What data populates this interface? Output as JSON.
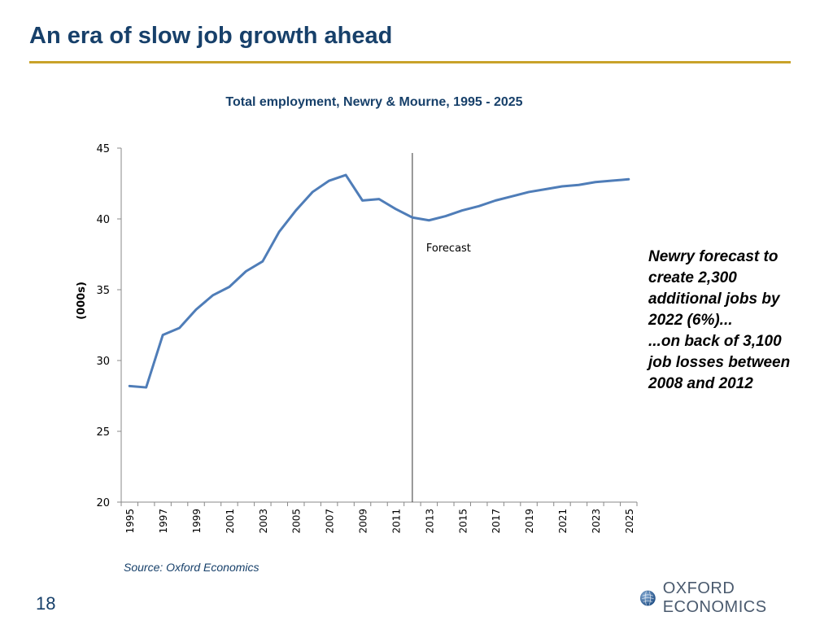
{
  "slide": {
    "title": "An era of slow job growth ahead",
    "page_number": "18",
    "source": "Source: Oxford Economics",
    "logo_text": "OXFORD ECONOMICS",
    "callout_lines": [
      "Newry forecast to",
      "create 2,300",
      "additional jobs by",
      "2022 (6%)...",
      "...on back of 3,100",
      "job losses between",
      "2008 and 2012"
    ]
  },
  "colors": {
    "title": "#17406a",
    "rule": "#c9a22a",
    "line": "#4f7db8",
    "axis": "#888888"
  },
  "chart_data": {
    "type": "line",
    "title": "Total employment, Newry & Mourne, 1995 - 2025",
    "xlabel": "",
    "ylabel": "(000s)",
    "ylim": [
      20,
      45
    ],
    "yticks": [
      20,
      25,
      30,
      35,
      40,
      45
    ],
    "xtick_labels": [
      "1995",
      "1997",
      "1999",
      "2001",
      "2003",
      "2005",
      "2007",
      "2009",
      "2011",
      "2013",
      "2015",
      "2017",
      "2019",
      "2021",
      "2023",
      "2025"
    ],
    "grid": false,
    "x": [
      1995,
      1996,
      1997,
      1998,
      1999,
      2000,
      2001,
      2002,
      2003,
      2004,
      2005,
      2006,
      2007,
      2008,
      2009,
      2010,
      2011,
      2012,
      2013,
      2014,
      2015,
      2016,
      2017,
      2018,
      2019,
      2020,
      2021,
      2022,
      2023,
      2024,
      2025
    ],
    "series": [
      {
        "values": [
          28.2,
          28.1,
          31.8,
          32.3,
          33.6,
          34.6,
          35.2,
          36.3,
          37.0,
          39.1,
          40.6,
          41.9,
          42.7,
          43.1,
          41.3,
          41.4,
          40.7,
          40.1,
          39.9,
          40.2,
          40.6,
          40.9,
          41.3,
          41.6,
          41.9,
          42.1,
          42.3,
          42.4,
          42.6,
          42.7,
          42.8
        ]
      }
    ],
    "annotations": [
      {
        "text": "Forecast",
        "x": 2012
      }
    ]
  }
}
